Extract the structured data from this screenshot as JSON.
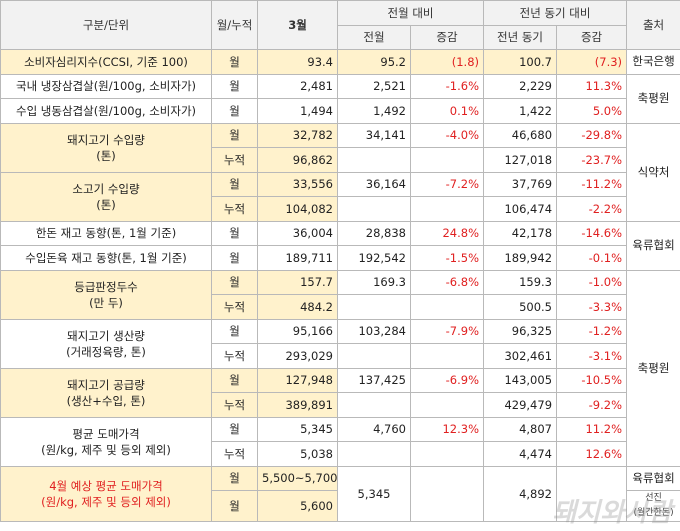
{
  "header": {
    "category": "구분/단위",
    "period": "월/누적",
    "current": "3월",
    "mom": "전월 대비",
    "yoy": "전년 동기 대비",
    "source": "출처",
    "prev_month": "전월",
    "change": "증감",
    "prev_year": "전년 동기",
    "change2": "증감"
  },
  "rows": {
    "ccsi": {
      "item": "소비자심리지수(CCSI, 기준 100)",
      "unit": "월",
      "cur": "93.4",
      "prev": "95.2",
      "mom": "(1.8)",
      "yoy_val": "100.7",
      "yoy": "(7.3)",
      "src": "한국은행"
    },
    "dom_belly": {
      "item": "국내 냉장삼겹살(원/100g, 소비자가)",
      "unit": "월",
      "cur": "2,481",
      "prev": "2,521",
      "mom": "-1.6%",
      "yoy_val": "2,229",
      "yoy": "11.3%"
    },
    "imp_belly": {
      "item": "수입 냉동삼겹살(원/100g, 소비자가)",
      "unit": "월",
      "cur": "1,494",
      "prev": "1,492",
      "mom": "0.1%",
      "yoy_val": "1,422",
      "yoy": "5.0%"
    },
    "pork_import": {
      "item": "돼지고기 수입량\n(톤)",
      "m_unit": "월",
      "m_cur": "32,782",
      "m_prev": "34,141",
      "m_mom": "-4.0%",
      "m_yoy_val": "46,680",
      "m_yoy": "-29.8%",
      "c_unit": "누적",
      "c_cur": "96,862",
      "c_yoy_val": "127,018",
      "c_yoy": "-23.7%"
    },
    "beef_import": {
      "item": "소고기 수입량\n(톤)",
      "m_unit": "월",
      "m_cur": "33,556",
      "m_prev": "36,164",
      "m_mom": "-7.2%",
      "m_yoy_val": "37,769",
      "m_yoy": "-11.2%",
      "c_unit": "누적",
      "c_cur": "104,082",
      "c_yoy_val": "106,474",
      "c_yoy": "-2.2%"
    },
    "hanwoo_stock": {
      "item": "한돈 재고 동향(톤, 1월 기준)",
      "unit": "월",
      "cur": "36,004",
      "prev": "28,838",
      "mom": "24.8%",
      "yoy_val": "42,178",
      "yoy": "-14.6%"
    },
    "imp_stock": {
      "item": "수입돈육 재고 동향(톤, 1월 기준)",
      "unit": "월",
      "cur": "189,711",
      "prev": "192,542",
      "mom": "-1.5%",
      "yoy_val": "189,942",
      "yoy": "-0.1%"
    },
    "grading": {
      "item": "등급판정두수\n(만 두)",
      "m_unit": "월",
      "m_cur": "157.7",
      "m_prev": "169.3",
      "m_mom": "-6.8%",
      "m_yoy_val": "159.3",
      "m_yoy": "-1.0%",
      "c_unit": "누적",
      "c_cur": "484.2",
      "c_yoy_val": "500.5",
      "c_yoy": "-3.3%"
    },
    "production": {
      "item": "돼지고기 생산량\n(거래정육량, 톤)",
      "m_unit": "월",
      "m_cur": "95,166",
      "m_prev": "103,284",
      "m_mom": "-7.9%",
      "m_yoy_val": "96,325",
      "m_yoy": "-1.2%",
      "c_unit": "누적",
      "c_cur": "293,029",
      "c_yoy_val": "302,461",
      "c_yoy": "-3.1%"
    },
    "supply": {
      "item": "돼지고기 공급량\n(생산+수입, 톤)",
      "m_unit": "월",
      "m_cur": "127,948",
      "m_prev": "137,425",
      "m_mom": "-6.9%",
      "m_yoy_val": "143,005",
      "m_yoy": "-10.5%",
      "c_unit": "누적",
      "c_cur": "389,891",
      "c_yoy_val": "429,479",
      "c_yoy": "-9.2%"
    },
    "wholesale": {
      "item": "평균 도매가격\n(원/kg, 제주 및 등외 제외)",
      "m_unit": "월",
      "m_cur": "5,345",
      "m_prev": "4,760",
      "m_mom": "12.3%",
      "m_yoy_val": "4,807",
      "m_yoy": "11.2%",
      "c_unit": "누적",
      "c_cur": "5,038",
      "c_yoy_val": "4,474",
      "c_yoy": "12.6%"
    },
    "forecast": {
      "item": "4월 예상 평균 도매가격\n(원/kg, 제주 및 등외 제외)",
      "u1": "월",
      "v1": "5,500~5,700",
      "u2": "월",
      "v2": "5,600",
      "prev": "5,345",
      "yoy_val": "4,892"
    }
  },
  "sources": {
    "chukpyeong1": "축평원",
    "mfds": "식약처",
    "yukryu1": "육류협회",
    "chukpyeong2": "축평원",
    "yukryu2": "육류협회",
    "seonjin": "선진\n(월간한돈)"
  },
  "watermark": "돼지와사람",
  "colors": {
    "highlight": "#fff2cc",
    "negative": "#e02020",
    "header": "#f2f2f2"
  }
}
